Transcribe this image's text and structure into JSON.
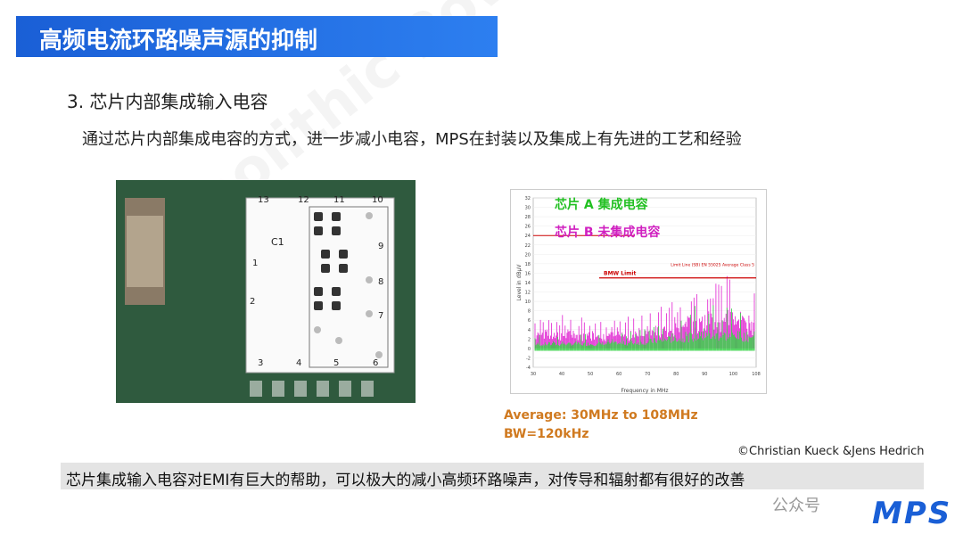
{
  "header": {
    "title": "高频电流环路噪声源的抑制"
  },
  "section": {
    "heading": "3. 芯片内部集成输入电容",
    "description": "通过芯片内部集成电容的方式，进一步减小电容，MPS在封装以及集成上有先进的工艺和经验"
  },
  "pcb_figure": {
    "component_label": "C1",
    "pin_labels": [
      "1",
      "2",
      "3",
      "4",
      "5",
      "6",
      "7",
      "8",
      "9",
      "10",
      "11",
      "12",
      "13"
    ]
  },
  "spectrum_figure": {
    "legend": [
      "芯片 A 集成电容",
      "芯片 B 未集成电容"
    ],
    "limit_line_label": "Limit Line (SB) EN 55025 Average Class 5",
    "bmw_limit_label": "BMW Limit",
    "y_axis_label": "Level in dBµV",
    "x_axis_label": "Frequency in MHz",
    "y_ticks": [
      32,
      30,
      28,
      26,
      24,
      22,
      20,
      18,
      16,
      14,
      12,
      10,
      8,
      6,
      4,
      2,
      0,
      -2,
      -4
    ],
    "x_ticks": [
      30,
      40,
      50,
      60,
      70,
      80,
      90,
      100,
      108
    ]
  },
  "measurement_note": [
    "Average: 30MHz to 108MHz",
    "BW=120kHz"
  ],
  "credit": "©Christian Kueck  &Jens Hedrich",
  "conclusion": "芯片集成输入电容对EMI有巨大的帮助，可以极大的减小高频环路噪声，对传导和辐射都有很好的改善",
  "watermark": "Monolithic Power Systems",
  "footer": {
    "account": "公众号",
    "logo": "MPS"
  }
}
